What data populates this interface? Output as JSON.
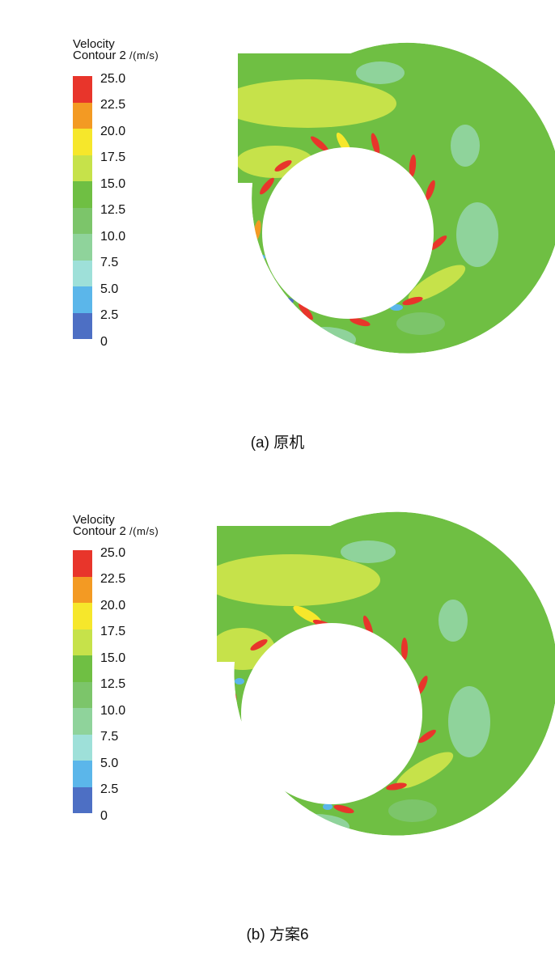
{
  "legend_title": "Velocity",
  "legend_subtitle": "Contour 2",
  "legend_unit": "/(m/s)",
  "levels": [
    "25.0",
    "22.5",
    "20.0",
    "17.5",
    "15.0",
    "12.5",
    "10.0",
    "7.5",
    "5.0",
    "2.5",
    "0"
  ],
  "level_colors": [
    "#e8352b",
    "#f39a23",
    "#f6e72b",
    "#c6e24a",
    "#6fbf43",
    "#7cc56a",
    "#8fd39b",
    "#9ee0d9",
    "#5bb6ea",
    "#4d6fc4"
  ],
  "panels": [
    {
      "caption": "(a) 原机"
    },
    {
      "caption": "(b) 方案6"
    }
  ]
}
